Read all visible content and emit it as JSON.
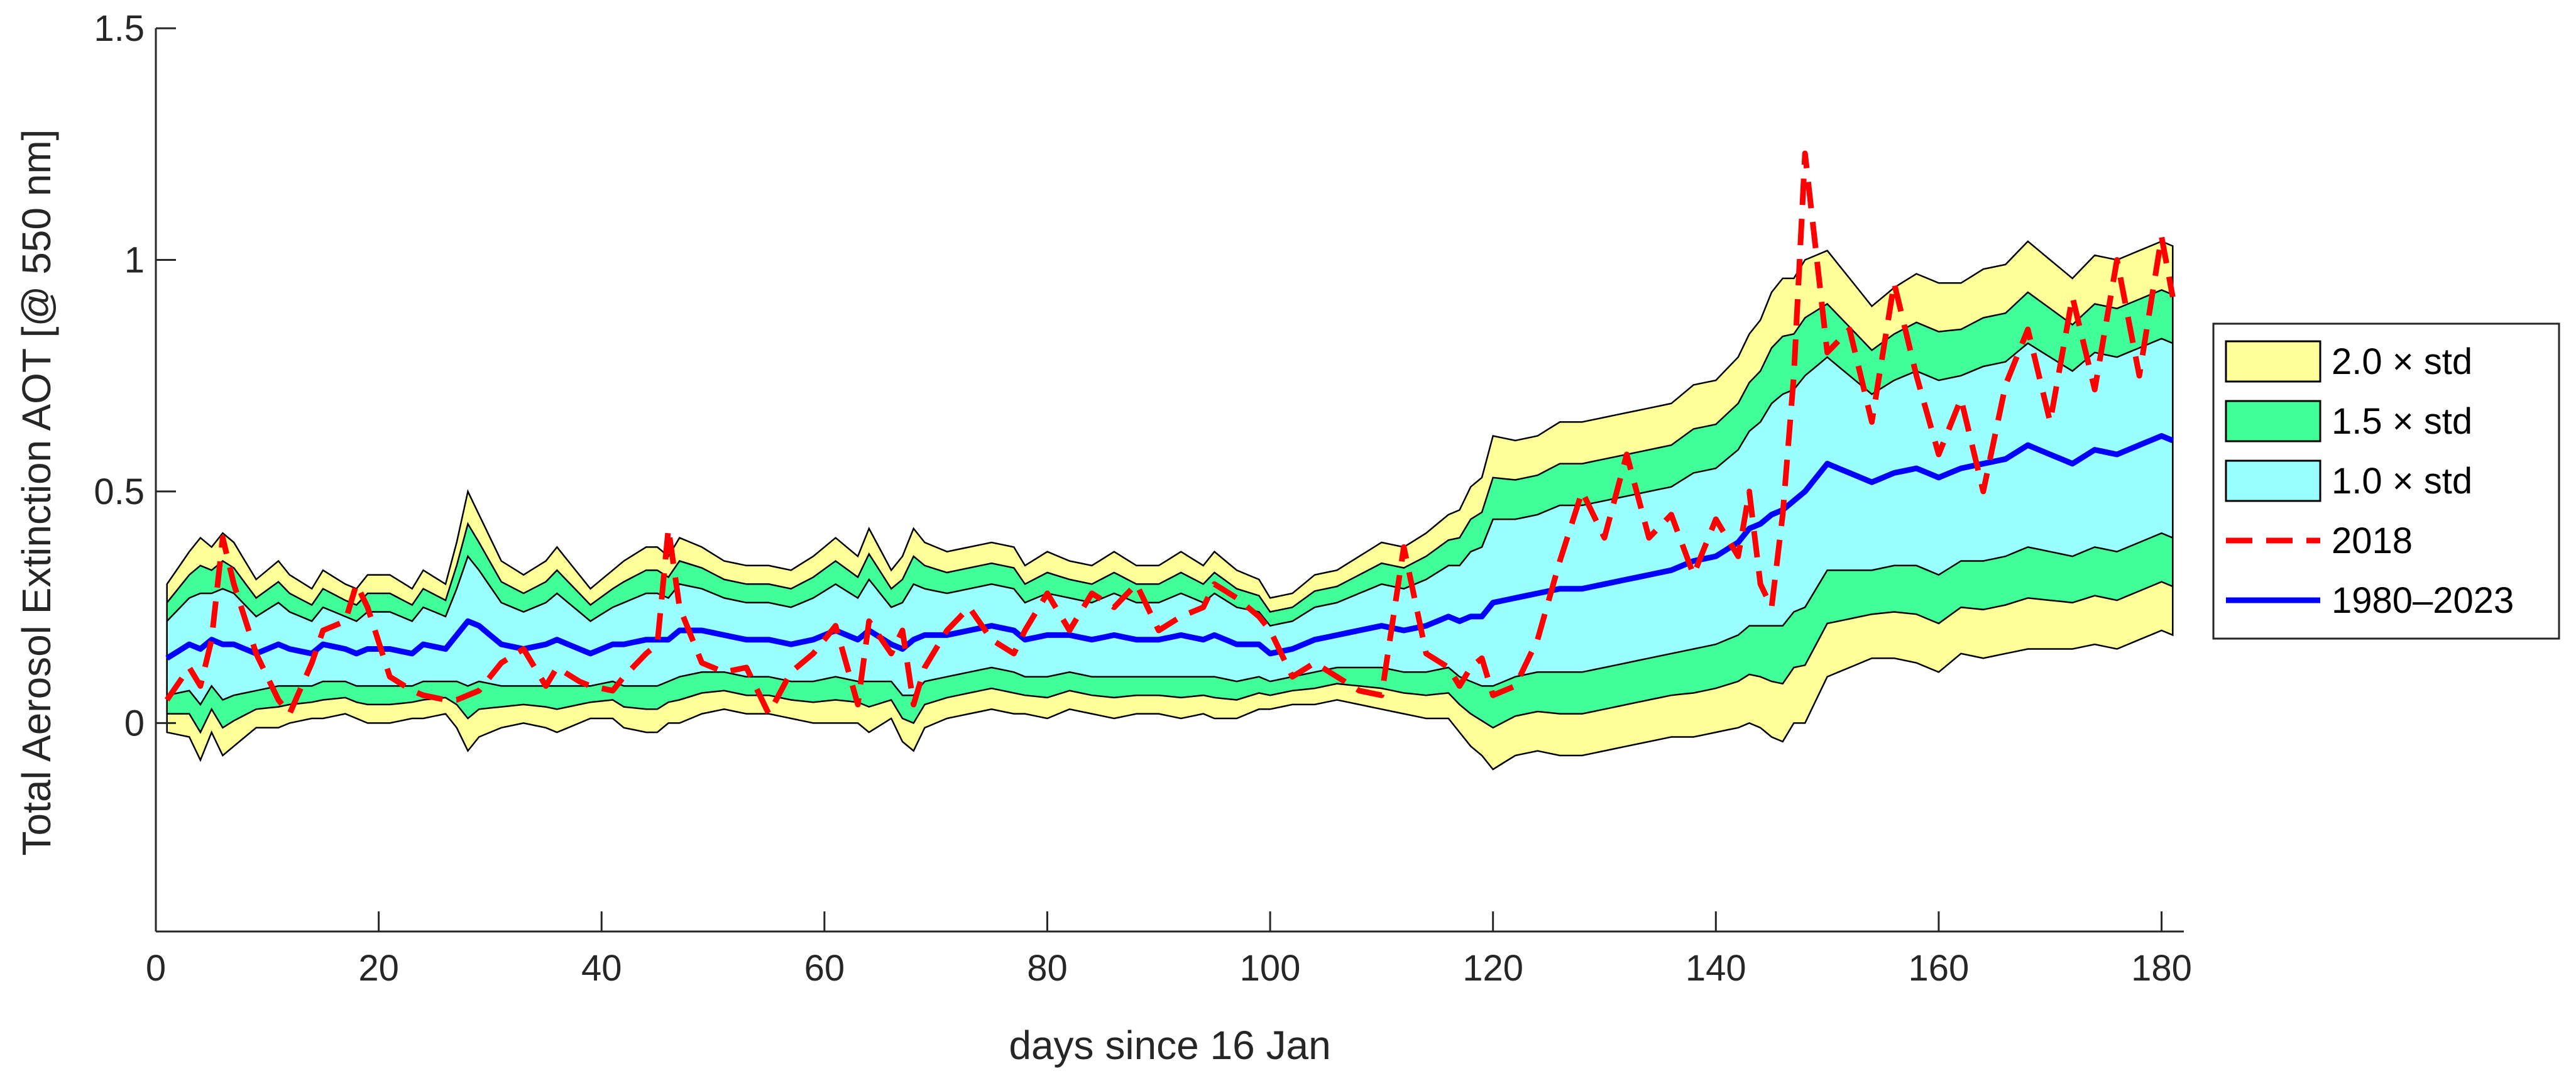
{
  "chart_data": {
    "type": "area",
    "title": "",
    "xlabel": "days since 16 Jan",
    "ylabel": "Total Aerosol Extinction AOT [@ 550 nm]",
    "xlim": [
      0,
      182
    ],
    "ylim": [
      -0.45,
      1.5
    ],
    "xticks": [
      0,
      20,
      40,
      60,
      80,
      100,
      120,
      140,
      160,
      180
    ],
    "yticks": [
      0,
      0.5,
      1,
      1.5
    ],
    "ytick_labels": [
      "0",
      "0.5",
      "1",
      "1.5"
    ],
    "grid": false,
    "legend_position": "right",
    "legend": [
      {
        "label": "2.0 × std",
        "kind": "patch",
        "color": "#FFFF99"
      },
      {
        "label": "1.5 × std",
        "kind": "patch",
        "color": "#40FF99"
      },
      {
        "label": "1.0 × std",
        "kind": "patch",
        "color": "#99FFFF"
      },
      {
        "label": "2018",
        "kind": "line",
        "color": "#FF0000",
        "style": "dashed"
      },
      {
        "label": "1980–2023",
        "kind": "line",
        "color": "#0000FF",
        "style": "solid"
      }
    ],
    "x_knots": [
      1,
      3,
      4,
      5,
      6,
      7,
      9,
      11,
      12,
      14,
      15,
      17,
      18,
      19,
      21,
      23,
      24,
      26,
      27,
      28,
      29,
      31,
      33,
      35,
      36,
      38,
      39,
      41,
      42,
      44,
      45,
      46,
      47,
      49,
      51,
      53,
      55,
      57,
      59,
      61,
      63,
      64,
      66,
      67,
      68,
      69,
      71,
      73,
      75,
      77,
      78,
      80,
      82,
      84,
      86,
      88,
      90,
      92,
      94,
      95,
      97,
      99,
      100,
      102,
      104,
      106,
      108,
      110,
      112,
      114,
      116,
      117,
      118,
      119,
      120,
      122,
      124,
      126,
      128,
      130,
      132,
      134,
      136,
      138,
      140,
      142,
      143,
      144,
      145,
      146,
      147,
      148,
      150,
      152,
      154,
      156,
      158,
      160,
      162,
      164,
      166,
      168,
      170,
      172,
      174,
      176,
      178,
      180,
      181
    ],
    "series": [
      {
        "name": "1980–2023",
        "role": "mean",
        "values": [
          0.14,
          0.17,
          0.16,
          0.18,
          0.17,
          0.17,
          0.15,
          0.17,
          0.16,
          0.15,
          0.17,
          0.16,
          0.15,
          0.16,
          0.16,
          0.15,
          0.17,
          0.16,
          0.19,
          0.22,
          0.21,
          0.17,
          0.16,
          0.17,
          0.18,
          0.16,
          0.15,
          0.17,
          0.17,
          0.18,
          0.18,
          0.18,
          0.2,
          0.2,
          0.19,
          0.18,
          0.18,
          0.17,
          0.18,
          0.2,
          0.18,
          0.2,
          0.17,
          0.16,
          0.18,
          0.19,
          0.19,
          0.2,
          0.21,
          0.2,
          0.18,
          0.19,
          0.19,
          0.18,
          0.19,
          0.18,
          0.18,
          0.19,
          0.18,
          0.19,
          0.17,
          0.17,
          0.15,
          0.16,
          0.18,
          0.19,
          0.2,
          0.21,
          0.2,
          0.21,
          0.23,
          0.22,
          0.23,
          0.23,
          0.26,
          0.27,
          0.28,
          0.29,
          0.29,
          0.3,
          0.31,
          0.32,
          0.33,
          0.35,
          0.36,
          0.39,
          0.42,
          0.43,
          0.45,
          0.46,
          0.48,
          0.5,
          0.56,
          0.54,
          0.52,
          0.54,
          0.55,
          0.53,
          0.55,
          0.56,
          0.57,
          0.6,
          0.58,
          0.56,
          0.59,
          0.58,
          0.6,
          0.62,
          0.61
        ]
      },
      {
        "name": "1.0 × std",
        "role": "band",
        "halfwidth": [
          0.08,
          0.1,
          0.12,
          0.1,
          0.12,
          0.11,
          0.08,
          0.09,
          0.08,
          0.07,
          0.08,
          0.07,
          0.07,
          0.08,
          0.08,
          0.07,
          0.08,
          0.07,
          0.1,
          0.14,
          0.12,
          0.09,
          0.08,
          0.09,
          0.1,
          0.08,
          0.07,
          0.08,
          0.09,
          0.1,
          0.1,
          0.09,
          0.1,
          0.09,
          0.08,
          0.08,
          0.08,
          0.08,
          0.09,
          0.1,
          0.09,
          0.11,
          0.08,
          0.1,
          0.12,
          0.1,
          0.09,
          0.09,
          0.09,
          0.09,
          0.08,
          0.09,
          0.08,
          0.08,
          0.09,
          0.08,
          0.08,
          0.09,
          0.08,
          0.09,
          0.08,
          0.07,
          0.06,
          0.06,
          0.07,
          0.07,
          0.08,
          0.09,
          0.09,
          0.1,
          0.11,
          0.12,
          0.14,
          0.15,
          0.18,
          0.17,
          0.17,
          0.18,
          0.18,
          0.18,
          0.18,
          0.18,
          0.18,
          0.19,
          0.19,
          0.2,
          0.21,
          0.22,
          0.24,
          0.25,
          0.24,
          0.25,
          0.23,
          0.21,
          0.19,
          0.2,
          0.21,
          0.21,
          0.2,
          0.21,
          0.21,
          0.22,
          0.21,
          0.2,
          0.21,
          0.21,
          0.21,
          0.21,
          0.21
        ]
      },
      {
        "name": "2018",
        "role": "year",
        "values": [
          0.05,
          0.12,
          0.08,
          0.18,
          0.4,
          0.3,
          0.15,
          0.05,
          0.02,
          0.13,
          0.2,
          0.22,
          0.3,
          0.25,
          0.1,
          0.07,
          0.06,
          0.05,
          0.05,
          0.06,
          0.07,
          0.13,
          0.16,
          0.08,
          0.12,
          0.09,
          0.08,
          0.07,
          0.1,
          0.15,
          0.17,
          0.42,
          0.25,
          0.13,
          0.11,
          0.12,
          0.02,
          0.11,
          0.15,
          0.21,
          0.04,
          0.22,
          0.15,
          0.2,
          0.04,
          0.12,
          0.2,
          0.25,
          0.18,
          0.15,
          0.2,
          0.28,
          0.2,
          0.28,
          0.25,
          0.3,
          0.2,
          0.23,
          0.25,
          0.3,
          0.27,
          0.23,
          0.2,
          0.1,
          0.13,
          0.1,
          0.07,
          0.06,
          0.38,
          0.15,
          0.12,
          0.08,
          0.12,
          0.14,
          0.06,
          0.08,
          0.18,
          0.35,
          0.5,
          0.4,
          0.58,
          0.4,
          0.45,
          0.32,
          0.44,
          0.36,
          0.5,
          0.3,
          0.25,
          0.45,
          0.75,
          1.23,
          0.8,
          0.85,
          0.65,
          0.95,
          0.75,
          0.58,
          0.7,
          0.5,
          0.73,
          0.85,
          0.65,
          0.92,
          0.72,
          1.0,
          0.75,
          1.05,
          0.92
        ]
      }
    ]
  }
}
